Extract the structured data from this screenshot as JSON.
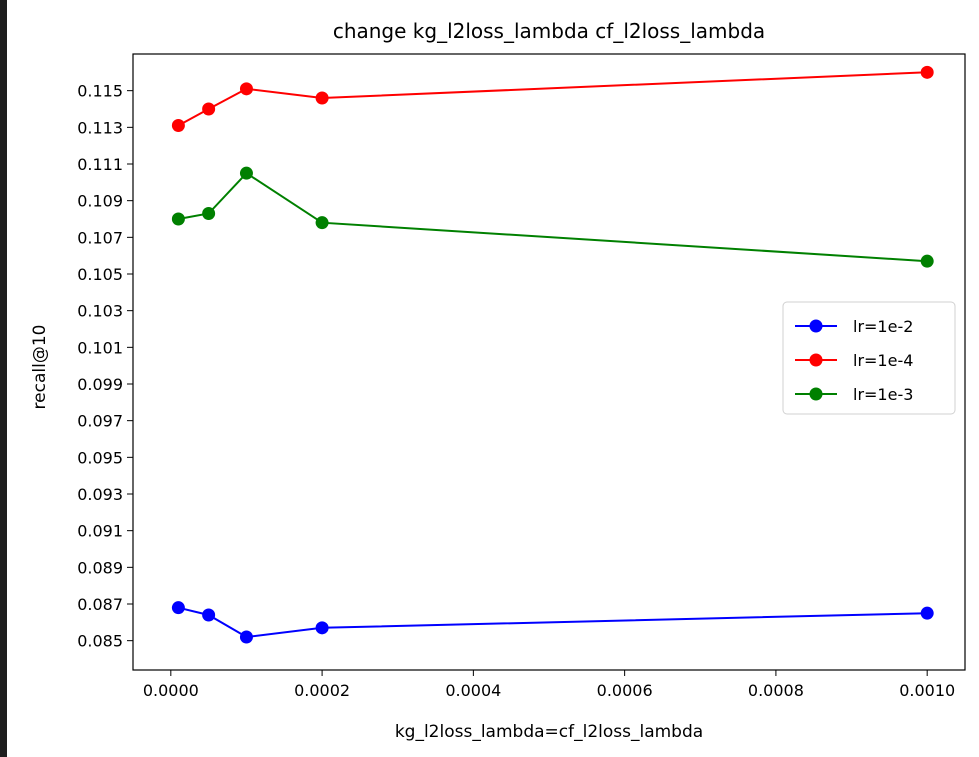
{
  "chart_data": {
    "type": "line",
    "title": "change kg_l2loss_lambda  cf_l2loss_lambda",
    "xlabel": "kg_l2loss_lambda=cf_l2loss_lambda",
    "ylabel": "recall@10",
    "xlim": [
      -5e-05,
      0.00105
    ],
    "ylim": [
      0.0834,
      0.117
    ],
    "x_ticks": [
      "0.0000",
      "0.0002",
      "0.0004",
      "0.0006",
      "0.0008",
      "0.0010"
    ],
    "x_tick_values": [
      0,
      0.0002,
      0.0004,
      0.0006,
      0.0008,
      0.001
    ],
    "y_ticks": [
      "0.085",
      "0.087",
      "0.089",
      "0.091",
      "0.093",
      "0.095",
      "0.097",
      "0.099",
      "0.101",
      "0.103",
      "0.105",
      "0.107",
      "0.109",
      "0.111",
      "0.113",
      "0.115"
    ],
    "y_tick_values": [
      0.085,
      0.087,
      0.089,
      0.091,
      0.093,
      0.095,
      0.097,
      0.099,
      0.101,
      0.103,
      0.105,
      0.107,
      0.109,
      0.111,
      0.113,
      0.115
    ],
    "legend_position": "center-right",
    "grid": false,
    "series": [
      {
        "name": "lr=1e-2",
        "color": "#0000ff",
        "x": [
          1e-05,
          5e-05,
          0.0001,
          0.0002,
          0.001
        ],
        "y": [
          0.0868,
          0.0864,
          0.0852,
          0.0857,
          0.0865
        ]
      },
      {
        "name": "lr=1e-4",
        "color": "#ff0000",
        "x": [
          1e-05,
          5e-05,
          0.0001,
          0.0002,
          0.001
        ],
        "y": [
          0.1131,
          0.114,
          0.1151,
          0.1146,
          0.116
        ]
      },
      {
        "name": "lr=1e-3",
        "color": "#008000",
        "x": [
          1e-05,
          5e-05,
          0.0001,
          0.0002,
          0.001
        ],
        "y": [
          0.108,
          0.1083,
          0.1105,
          0.1078,
          0.1057
        ]
      }
    ]
  }
}
